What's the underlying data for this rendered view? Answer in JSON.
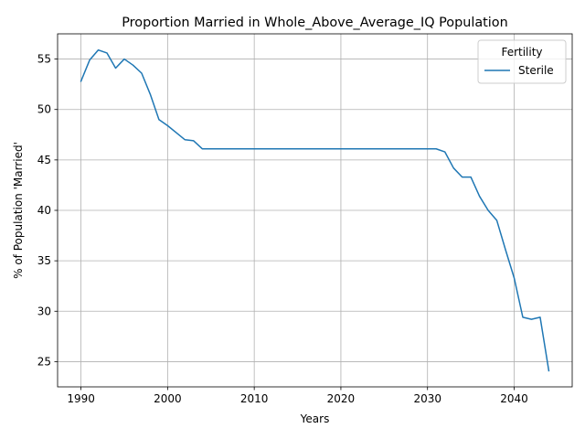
{
  "chart_data": {
    "type": "line",
    "title": "Proportion Married in Whole_Above_Average_IQ Population",
    "xlabel": "Years",
    "ylabel": "% of Population 'Married'",
    "xlim": [
      1987.3,
      2046.7
    ],
    "ylim": [
      22.5,
      57.5
    ],
    "xticks": [
      1990,
      2000,
      2010,
      2020,
      2030,
      2040
    ],
    "yticks": [
      25,
      30,
      35,
      40,
      45,
      50,
      55
    ],
    "grid": true,
    "legend": {
      "title": "Fertility",
      "placement": "top-right"
    },
    "colors": {
      "series": "#1f77b4"
    },
    "series": [
      {
        "name": "Sterile",
        "x": [
          1990,
          1991,
          1992,
          1993,
          1994,
          1995,
          1996,
          1997,
          1998,
          1999,
          2000,
          2001,
          2002,
          2003,
          2004,
          2005,
          2006,
          2007,
          2008,
          2009,
          2010,
          2011,
          2012,
          2013,
          2014,
          2015,
          2016,
          2017,
          2018,
          2019,
          2020,
          2021,
          2022,
          2023,
          2024,
          2025,
          2026,
          2027,
          2028,
          2029,
          2030,
          2031,
          2032,
          2033,
          2034,
          2035,
          2036,
          2037,
          2038,
          2039,
          2040,
          2041,
          2042,
          2043,
          2044
        ],
        "y": [
          52.8,
          54.9,
          55.9,
          55.6,
          54.1,
          55.0,
          54.4,
          53.6,
          51.5,
          49.0,
          48.4,
          47.7,
          47.0,
          46.9,
          46.1,
          46.1,
          46.1,
          46.1,
          46.1,
          46.1,
          46.1,
          46.1,
          46.1,
          46.1,
          46.1,
          46.1,
          46.1,
          46.1,
          46.1,
          46.1,
          46.1,
          46.1,
          46.1,
          46.1,
          46.1,
          46.1,
          46.1,
          46.1,
          46.1,
          46.1,
          46.1,
          46.1,
          45.8,
          44.2,
          43.3,
          43.3,
          41.4,
          40.0,
          39.0,
          36.1,
          33.3,
          29.4,
          29.2,
          29.4,
          24.1
        ]
      }
    ]
  }
}
